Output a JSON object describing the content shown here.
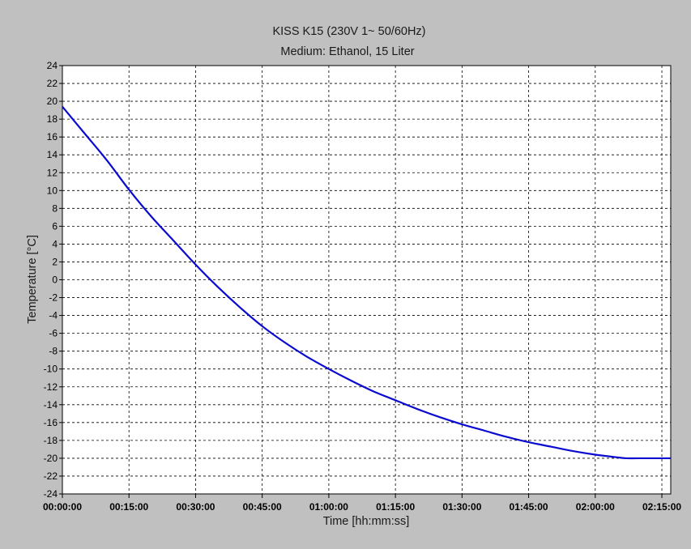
{
  "chart_data": {
    "type": "line",
    "title": "KISS K15 (230V 1~ 50/60Hz)",
    "subtitle": "Medium: Ethanol, 15 Liter",
    "xlabel": "Time [hh:mm:ss]",
    "ylabel": "Temperature [°C]",
    "xunit": "seconds",
    "xlim": [
      "00:00:00",
      "02:17:00"
    ],
    "ylim": [
      -24,
      24
    ],
    "x_ticks": [
      "00:00:00",
      "00:15:00",
      "00:30:00",
      "00:45:00",
      "01:00:00",
      "01:15:00",
      "01:30:00",
      "01:45:00",
      "02:00:00",
      "02:15:00"
    ],
    "y_ticks": [
      24,
      22,
      20,
      18,
      16,
      14,
      12,
      10,
      8,
      6,
      4,
      2,
      0,
      -2,
      -4,
      -6,
      -8,
      -10,
      -12,
      -14,
      -16,
      -18,
      -20,
      -22,
      -24
    ],
    "grid": true,
    "colors": {
      "background": "#c0c0c0",
      "plot_area": "#ffffff",
      "series": "#0a0ad0",
      "grid": "#000000"
    },
    "series": [
      {
        "x": [
          "00:00:00",
          "00:05:00",
          "00:10:00",
          "00:15:00",
          "00:20:00",
          "00:25:00",
          "00:30:00",
          "00:35:00",
          "00:40:00",
          "00:45:00",
          "00:50:00",
          "00:55:00",
          "01:00:00",
          "01:05:00",
          "01:10:00",
          "01:15:00",
          "01:20:00",
          "01:25:00",
          "01:30:00",
          "01:35:00",
          "01:40:00",
          "01:45:00",
          "01:50:00",
          "01:55:00",
          "02:00:00",
          "02:05:00",
          "02:07:00",
          "02:10:00",
          "02:17:00"
        ],
        "values": [
          19.4,
          16.4,
          13.4,
          10.1,
          7.1,
          4.4,
          1.7,
          -0.8,
          -3.1,
          -5.2,
          -7.0,
          -8.6,
          -10.0,
          -11.3,
          -12.5,
          -13.5,
          -14.5,
          -15.4,
          -16.2,
          -16.9,
          -17.6,
          -18.2,
          -18.7,
          -19.2,
          -19.6,
          -19.9,
          -20.0,
          -20.0,
          -20.0
        ]
      }
    ]
  }
}
